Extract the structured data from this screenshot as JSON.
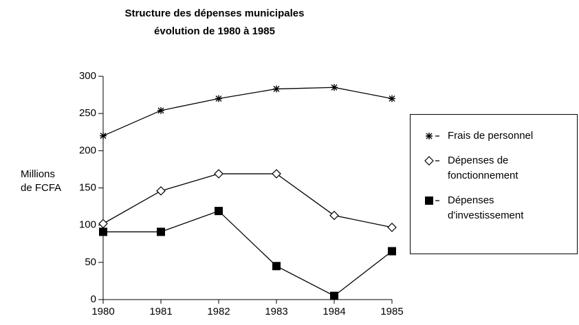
{
  "chart_data": {
    "type": "line",
    "title": "Structure des dépenses municipales",
    "subtitle": "évolution de 1980 à 1985",
    "ylabel": "Millions de FCFA",
    "x": [
      1980,
      1981,
      1982,
      1983,
      1984,
      1985
    ],
    "xlim": [
      1980,
      1985
    ],
    "xticks": [
      1980,
      1981,
      1982,
      1983,
      1984,
      1985
    ],
    "ylim": [
      0,
      300
    ],
    "yticks": [
      0,
      50,
      100,
      150,
      200,
      250,
      300
    ],
    "legend": "right",
    "series": [
      {
        "name": "Frais de personnel",
        "color": "#000000",
        "marker": "asterisk",
        "values": [
          220,
          254,
          270,
          283,
          285,
          270
        ]
      },
      {
        "name": "Dépenses de fonctionnement",
        "color": "#000000",
        "marker": "diamond",
        "values": [
          102,
          146,
          169,
          169,
          113,
          97
        ]
      },
      {
        "name": "Dépenses d'investissement",
        "color": "#000000",
        "marker": "square",
        "values": [
          91,
          91,
          119,
          45,
          5,
          65
        ]
      }
    ]
  }
}
